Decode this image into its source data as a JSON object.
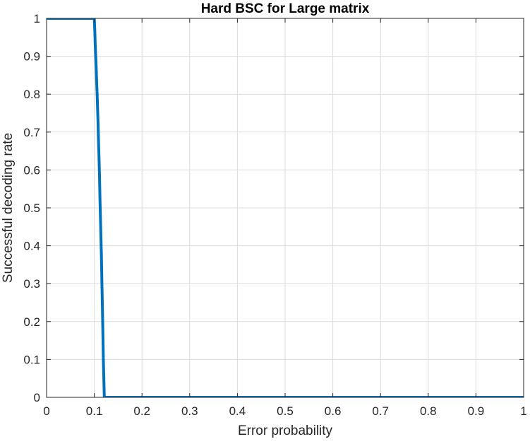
{
  "chart_data": {
    "type": "line",
    "title": "Hard BSC for Large matrix",
    "xlabel": "Error probability",
    "ylabel": "Successful decoding rate",
    "xlim": [
      0,
      1
    ],
    "ylim": [
      0,
      1
    ],
    "grid": true,
    "legend": "none",
    "x_ticks": [
      0,
      0.1,
      0.2,
      0.3,
      0.4,
      0.5,
      0.6,
      0.7,
      0.8,
      0.9,
      1
    ],
    "y_ticks": [
      0,
      0.1,
      0.2,
      0.3,
      0.4,
      0.5,
      0.6,
      0.7,
      0.8,
      0.9,
      1
    ],
    "x_tick_labels": [
      "0",
      "0.1",
      "0.2",
      "0.3",
      "0.4",
      "0.5",
      "0.6",
      "0.7",
      "0.8",
      "0.9",
      "1"
    ],
    "y_tick_labels": [
      "0",
      "0.1",
      "0.2",
      "0.3",
      "0.4",
      "0.5",
      "0.6",
      "0.7",
      "0.8",
      "0.9",
      "1"
    ],
    "series": [
      {
        "color": "#0072bd",
        "x": [
          0,
          0.1,
          0.101,
          0.102,
          0.103,
          0.104,
          0.105,
          0.106,
          0.107,
          0.108,
          0.109,
          0.11,
          0.111,
          0.112,
          0.113,
          0.114,
          0.115,
          0.116,
          0.117,
          0.118,
          0.119,
          0.12,
          0.121,
          1
        ],
        "y": [
          1,
          1,
          0.97,
          0.93,
          0.9,
          0.87,
          0.83,
          0.8,
          0.76,
          0.72,
          0.67,
          0.63,
          0.58,
          0.52,
          0.47,
          0.42,
          0.37,
          0.3,
          0.24,
          0.17,
          0.1,
          0.05,
          0,
          0
        ]
      }
    ]
  }
}
